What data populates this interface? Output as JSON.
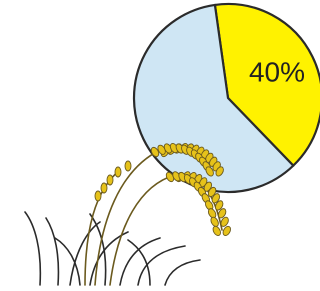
{
  "chart_data": {
    "type": "pie",
    "categories": [
      null,
      null
    ],
    "values": [
      40,
      60
    ],
    "value_labels": [
      "40%",
      null
    ],
    "colors": [
      "#fff200",
      "#cfe6f4"
    ]
  }
}
